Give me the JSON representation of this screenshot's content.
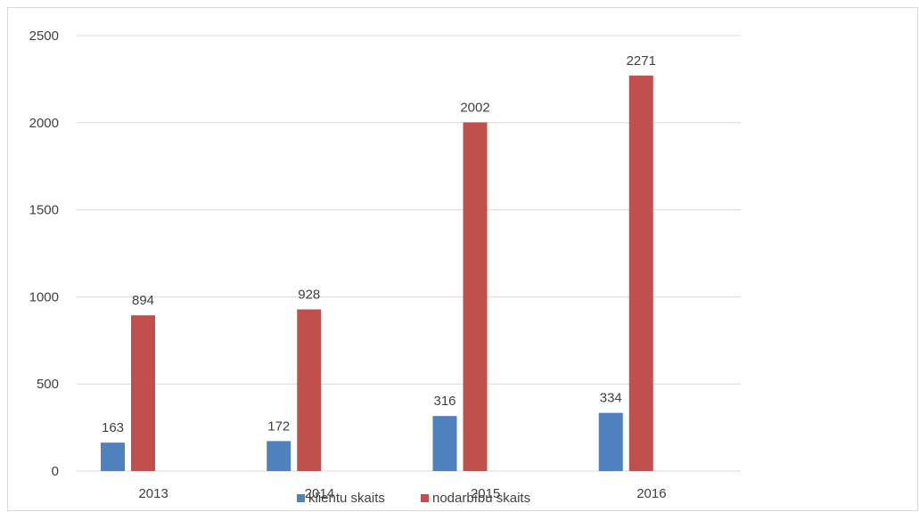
{
  "chart_data": {
    "type": "bar",
    "categories": [
      "2013",
      "2014",
      "2015",
      "2016"
    ],
    "series": [
      {
        "name": "klientu skaits",
        "values": [
          163,
          172,
          316,
          334
        ],
        "color": "#4f81bd"
      },
      {
        "name": "nodarbību skaits",
        "values": [
          894,
          928,
          2002,
          2271
        ],
        "color": "#c0504d"
      }
    ],
    "y_ticks": [
      "0",
      "500",
      "1000",
      "1500",
      "2000",
      "2500"
    ],
    "ylim": [
      0,
      2500
    ],
    "grid": true,
    "legend_position": "bottom",
    "title": "",
    "xlabel": "",
    "ylabel": ""
  }
}
